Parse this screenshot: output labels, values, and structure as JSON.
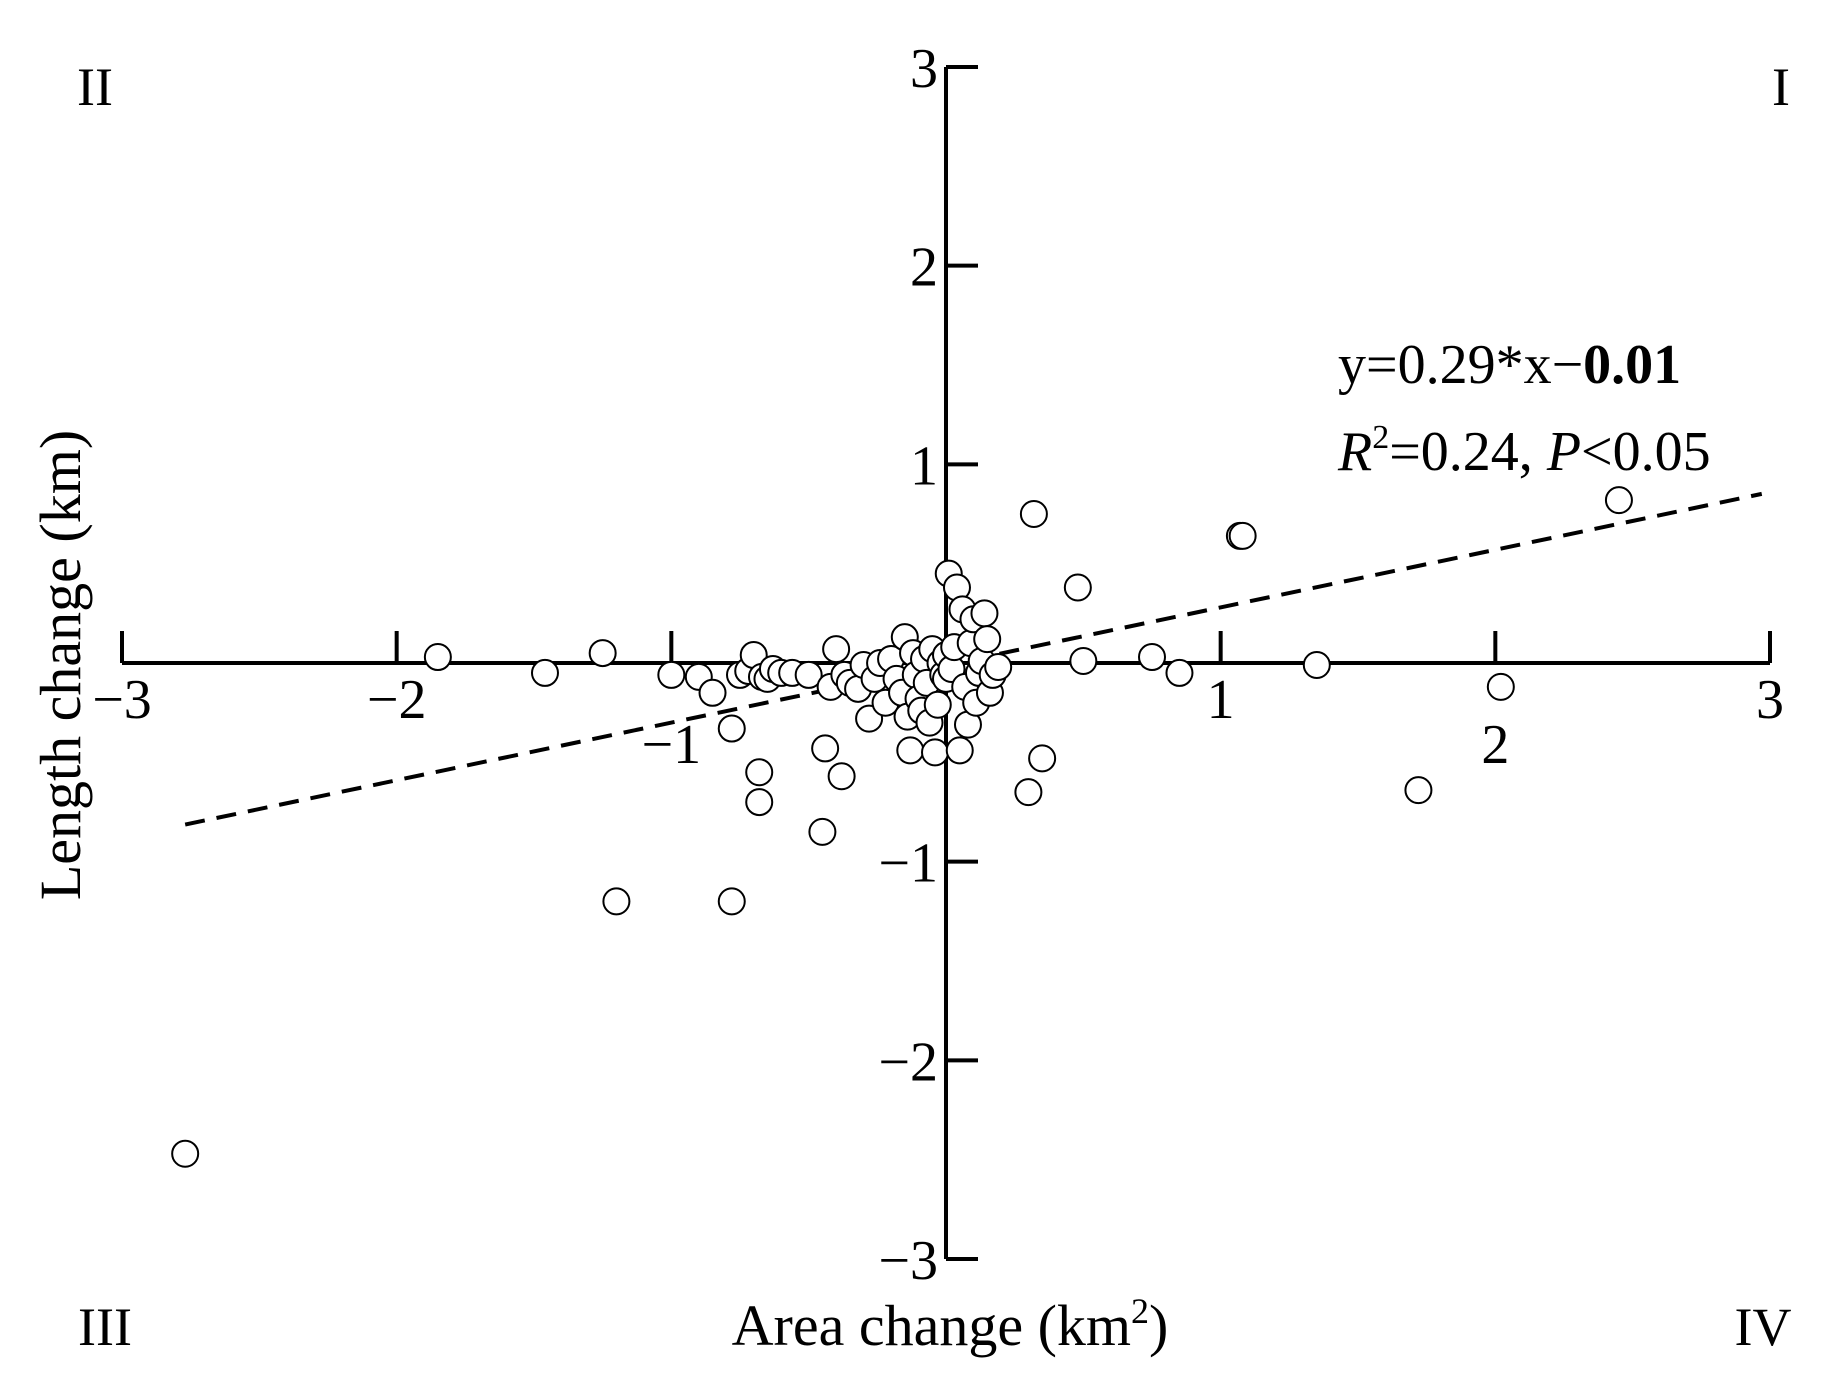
{
  "chart_data": {
    "type": "scatter",
    "xlabel_main": "Area change (km",
    "xlabel_sup": "2",
    "xlabel_end": ")",
    "ylabel": "Length change (km)",
    "xlim": [
      -3,
      3
    ],
    "ylim": [
      -3,
      3
    ],
    "x_ticks": [
      {
        "value": -3,
        "label": "−3",
        "pos": "below"
      },
      {
        "value": -2,
        "label": "−2",
        "pos": "below"
      },
      {
        "value": -1,
        "label": "−1",
        "pos": "belowfar"
      },
      {
        "value": 1,
        "label": "1",
        "pos": "below"
      },
      {
        "value": 2,
        "label": "2",
        "pos": "belowfar"
      },
      {
        "value": 3,
        "label": "3",
        "pos": "below"
      }
    ],
    "y_ticks": [
      {
        "value": 3,
        "label": "3"
      },
      {
        "value": 2,
        "label": "2"
      },
      {
        "value": 1,
        "label": "1"
      },
      {
        "value": -1,
        "label": "−1"
      },
      {
        "value": -2,
        "label": "−2"
      },
      {
        "value": -3,
        "label": "−3"
      }
    ],
    "quadrants": {
      "I": "I",
      "II": "II",
      "III": "III",
      "IV": "IV"
    },
    "fit": {
      "slope": 0.29,
      "intercept": -0.01,
      "x_range": [
        -2.77,
        2.97
      ],
      "style": "dashed",
      "eq_part1": "y=0.29*x−",
      "eq_part2": "0.01",
      "r2_R": "R",
      "r2_sup": "2",
      "r2_val": "=0.24, ",
      "p_P": "P",
      "p_val": "<0.05"
    },
    "points": [
      [
        -2.77,
        -2.47
      ],
      [
        -1.85,
        0.03
      ],
      [
        -1.46,
        -0.05
      ],
      [
        -1.25,
        0.05
      ],
      [
        -1.2,
        -1.2
      ],
      [
        -1.0,
        -0.06
      ],
      [
        -0.9,
        -0.07
      ],
      [
        -0.85,
        -0.15
      ],
      [
        -0.78,
        -0.33
      ],
      [
        -0.78,
        -1.2
      ],
      [
        -0.75,
        -0.06
      ],
      [
        -0.72,
        -0.04
      ],
      [
        -0.7,
        0.04
      ],
      [
        -0.68,
        -0.55
      ],
      [
        -0.68,
        -0.7
      ],
      [
        -0.67,
        -0.07
      ],
      [
        -0.65,
        -0.08
      ],
      [
        -0.63,
        -0.03
      ],
      [
        -0.6,
        -0.05
      ],
      [
        -0.56,
        -0.05
      ],
      [
        -0.5,
        -0.06
      ],
      [
        -0.45,
        -0.85
      ],
      [
        -0.44,
        -0.43
      ],
      [
        -0.42,
        -0.12
      ],
      [
        -0.4,
        0.07
      ],
      [
        -0.38,
        -0.57
      ],
      [
        -0.37,
        -0.06
      ],
      [
        -0.35,
        -0.1
      ],
      [
        -0.32,
        -0.13
      ],
      [
        -0.3,
        -0.01
      ],
      [
        -0.28,
        -0.28
      ],
      [
        -0.26,
        -0.08
      ],
      [
        -0.24,
        0.0
      ],
      [
        -0.22,
        -0.2
      ],
      [
        -0.2,
        0.02
      ],
      [
        -0.18,
        -0.08
      ],
      [
        -0.16,
        -0.15
      ],
      [
        -0.15,
        0.13
      ],
      [
        -0.14,
        -0.27
      ],
      [
        -0.13,
        -0.44
      ],
      [
        -0.12,
        0.05
      ],
      [
        -0.11,
        -0.06
      ],
      [
        -0.1,
        -0.18
      ],
      [
        -0.09,
        -0.24
      ],
      [
        -0.08,
        0.02
      ],
      [
        -0.07,
        -0.1
      ],
      [
        -0.06,
        -0.3
      ],
      [
        -0.05,
        0.07
      ],
      [
        -0.04,
        -0.45
      ],
      [
        -0.03,
        -0.21
      ],
      [
        -0.02,
        0.0
      ],
      [
        -0.01,
        -0.06
      ],
      [
        0.0,
        -0.08
      ],
      [
        0.0,
        0.04
      ],
      [
        0.01,
        0.45
      ],
      [
        0.02,
        -0.03
      ],
      [
        0.03,
        0.08
      ],
      [
        0.04,
        0.38
      ],
      [
        0.05,
        -0.44
      ],
      [
        0.06,
        0.27
      ],
      [
        0.07,
        -0.12
      ],
      [
        0.08,
        -0.31
      ],
      [
        0.09,
        0.1
      ],
      [
        0.1,
        0.22
      ],
      [
        0.11,
        -0.2
      ],
      [
        0.12,
        -0.05
      ],
      [
        0.13,
        0.01
      ],
      [
        0.14,
        0.25
      ],
      [
        0.15,
        0.12
      ],
      [
        0.16,
        -0.15
      ],
      [
        0.17,
        -0.06
      ],
      [
        0.19,
        -0.02
      ],
      [
        0.3,
        -0.65
      ],
      [
        0.32,
        0.75
      ],
      [
        0.35,
        -0.48
      ],
      [
        0.48,
        0.38
      ],
      [
        0.5,
        0.01
      ],
      [
        0.75,
        0.03
      ],
      [
        0.85,
        -0.05
      ],
      [
        1.07,
        0.64
      ],
      [
        1.08,
        0.64
      ],
      [
        1.35,
        -0.01
      ],
      [
        1.72,
        -0.64
      ],
      [
        2.02,
        -0.12
      ],
      [
        2.45,
        0.82
      ]
    ]
  }
}
